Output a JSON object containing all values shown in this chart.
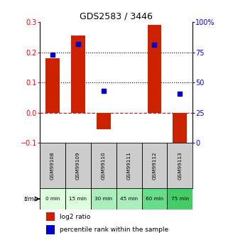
{
  "title": "GDS2583 / 3446",
  "samples": [
    "GSM99108",
    "GSM99109",
    "GSM99110",
    "GSM99111",
    "GSM99112",
    "GSM99113"
  ],
  "time_labels": [
    "0 min",
    "15 min",
    "30 min",
    "45 min",
    "60 min",
    "75 min"
  ],
  "log2_ratio": [
    0.18,
    0.255,
    -0.055,
    0.0,
    0.29,
    -0.115
  ],
  "pct_rank": [
    73,
    82,
    43,
    null,
    81,
    41
  ],
  "left_ylim": [
    -0.1,
    0.3
  ],
  "right_ylim": [
    0,
    100
  ],
  "left_yticks": [
    -0.1,
    0.0,
    0.1,
    0.2,
    0.3
  ],
  "right_yticks": [
    0,
    25,
    50,
    75,
    100
  ],
  "hlines_dotted": [
    0.1,
    0.2
  ],
  "hline_dashed": 0.0,
  "bar_color": "#cc2200",
  "dot_color": "#0000cc",
  "zero_line_color": "#bb2222",
  "dot_line_color": "#000000",
  "time_colors": [
    "#ddffdd",
    "#ddffdd",
    "#aaeebb",
    "#aaeebb",
    "#66dd88",
    "#44cc66"
  ],
  "sample_bg": "#cccccc",
  "bar_width": 0.55,
  "dot_size": 4.5
}
